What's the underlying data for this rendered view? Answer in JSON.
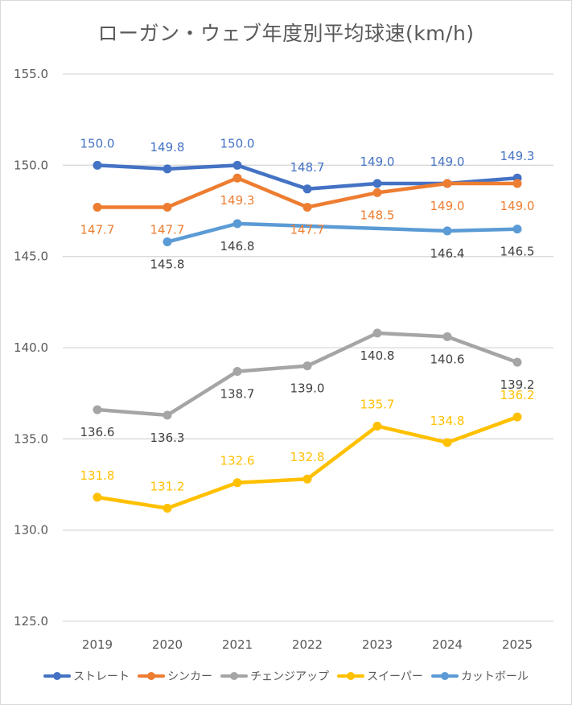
{
  "chart_data": {
    "type": "line",
    "title": "ローガン・ウェブ年度別平均球速(km/h)",
    "xlabel": "",
    "ylabel": "",
    "categories": [
      "2019",
      "2020",
      "2021",
      "2022",
      "2023",
      "2024",
      "2025"
    ],
    "ylim": [
      125.0,
      155.0
    ],
    "yticks": [
      "125.0",
      "130.0",
      "135.0",
      "140.0",
      "145.0",
      "150.0",
      "155.0"
    ],
    "grid": true,
    "legend_position": "bottom",
    "series": [
      {
        "name": "ストレート",
        "color": "#4472C4",
        "label_color": "#4472C4",
        "label_pos": "above",
        "values": [
          150.0,
          149.8,
          150.0,
          148.7,
          149.0,
          149.0,
          149.3
        ]
      },
      {
        "name": "シンカー",
        "color": "#ED7D31",
        "label_color": "#ED7D31",
        "label_pos": "below",
        "values": [
          147.7,
          147.7,
          149.3,
          147.7,
          148.5,
          149.0,
          149.0
        ]
      },
      {
        "name": "チェンジアップ",
        "color": "#A5A5A5",
        "label_color": "#404040",
        "label_pos": "below",
        "values": [
          136.6,
          136.3,
          138.7,
          139.0,
          140.8,
          140.6,
          139.2
        ]
      },
      {
        "name": "スイーパー",
        "color": "#FFC000",
        "label_color": "#FFC000",
        "label_pos": "above",
        "values": [
          131.8,
          131.2,
          132.6,
          132.8,
          135.7,
          134.8,
          136.2
        ]
      },
      {
        "name": "カットボール",
        "color": "#5B9BD5",
        "label_color": "#404040",
        "label_pos": "below",
        "values": [
          null,
          145.8,
          146.8,
          null,
          null,
          146.4,
          146.5
        ]
      }
    ]
  }
}
